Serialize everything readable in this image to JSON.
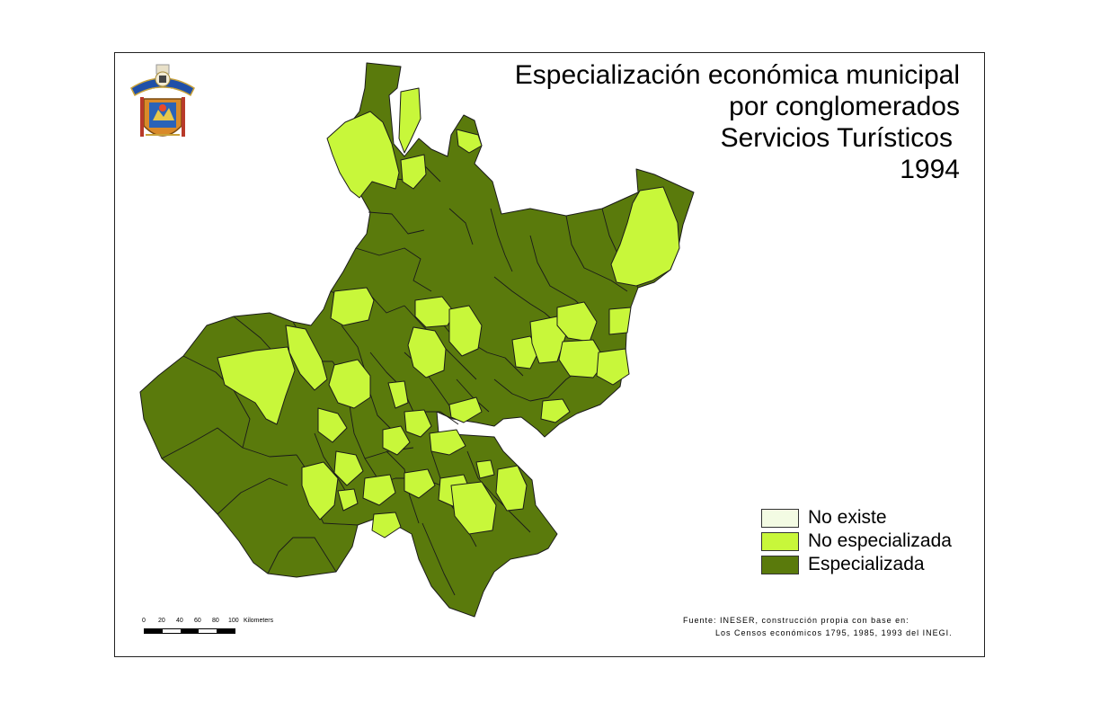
{
  "title": {
    "line1": "Especialización económica municipal",
    "line2": "por conglomerados",
    "line3": "Servicios Turísticos",
    "line4": "1994"
  },
  "legend": {
    "items": [
      {
        "label": "No existe",
        "color": "#f3fbe3"
      },
      {
        "label": "No especializada",
        "color": "#c8f73a"
      },
      {
        "label": "Especializada",
        "color": "#5a7a0c"
      }
    ]
  },
  "colors": {
    "especializada": "#5a7a0c",
    "no_especializada": "#c8f73a",
    "border": "#1a1a1a"
  },
  "source": {
    "line1": "Fuente: INESER, construcción propia con base en:",
    "line2": "Los Censos económicos 1795, 1985, 1993 del INEGI."
  },
  "scale": {
    "ticks": [
      "0",
      "20",
      "40",
      "60",
      "80",
      "100"
    ],
    "unit": "Kilometers"
  },
  "logo": {
    "icon": "university-coat-of-arms"
  }
}
